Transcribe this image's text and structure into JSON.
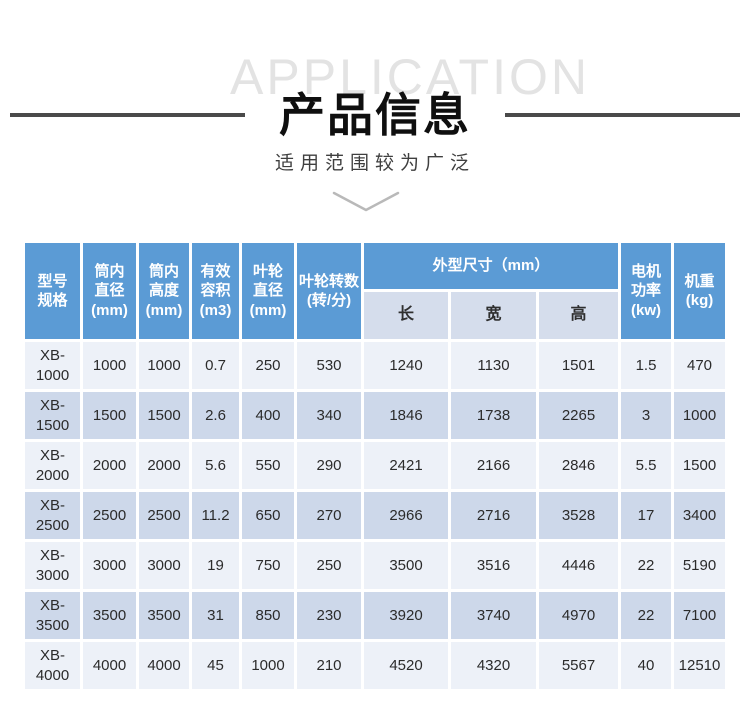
{
  "page": {
    "watermark": "APPLICATION",
    "title": "产品信息",
    "subtitle": "适用范围较为广泛"
  },
  "colors": {
    "header_bg": "#5b9bd5",
    "subheader_bg": "#d5ddec",
    "row_light": "#edf1f8",
    "row_dark": "#cdd8ea",
    "title_color": "#0f0f0f",
    "line_color": "#4a4a4a",
    "watermark_color": "#e3e3e3",
    "cell_text": "#2b2b2b"
  },
  "icons": {
    "chevron_down": "chevron-down"
  },
  "table": {
    "header": {
      "model": "型号\n规格",
      "inner_diameter": "筒内\n直径\n(mm)",
      "inner_height": "筒内\n高度\n(mm)",
      "effective_volume": "有效\n容积\n(m3)",
      "impeller_diameter": "叶轮\n直径\n(mm)",
      "impeller_speed": "叶轮转数\n(转/分)",
      "dimensions_group": "外型尺寸（mm）",
      "dim_length": "长",
      "dim_width": "宽",
      "dim_height": "高",
      "motor_power": "电机\n功率\n(kw)",
      "weight": "机重\n(kg)"
    },
    "rows": [
      {
        "model": "XB-\n1000",
        "values": [
          "1000",
          "1000",
          "0.7",
          "250",
          "530",
          "1240",
          "1130",
          "1501",
          "1.5",
          "470"
        ]
      },
      {
        "model": "XB-\n1500",
        "values": [
          "1500",
          "1500",
          "2.6",
          "400",
          "340",
          "1846",
          "1738",
          "2265",
          "3",
          "1000"
        ]
      },
      {
        "model": "XB-\n2000",
        "values": [
          "2000",
          "2000",
          "5.6",
          "550",
          "290",
          "2421",
          "2166",
          "2846",
          "5.5",
          "1500"
        ]
      },
      {
        "model": "XB-\n2500",
        "values": [
          "2500",
          "2500",
          "11.2",
          "650",
          "270",
          "2966",
          "2716",
          "3528",
          "17",
          "3400"
        ]
      },
      {
        "model": "XB-\n3000",
        "values": [
          "3000",
          "3000",
          "19",
          "750",
          "250",
          "3500",
          "3516",
          "4446",
          "22",
          "5190"
        ]
      },
      {
        "model": "XB-\n3500",
        "values": [
          "3500",
          "3500",
          "31",
          "850",
          "230",
          "3920",
          "3740",
          "4970",
          "22",
          "7100"
        ]
      },
      {
        "model": "XB-\n4000",
        "values": [
          "4000",
          "4000",
          "45",
          "1000",
          "210",
          "4520",
          "4320",
          "5567",
          "40",
          "12510"
        ]
      }
    ]
  }
}
